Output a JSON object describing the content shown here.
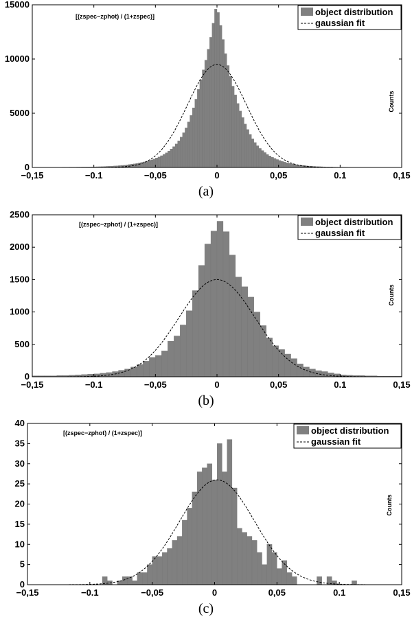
{
  "chart_data": [
    {
      "type": "bar",
      "id": "a",
      "caption": "(a)",
      "title": "[(zspec−zphot) / (1+zspec)]",
      "ylabel": "Counts",
      "xlim": [
        -0.15,
        0.15
      ],
      "ylim": [
        0,
        15000
      ],
      "xticks": [
        "−0,15",
        "−0.1",
        "−0,05",
        "0",
        "0,05",
        "0.1",
        "0,15"
      ],
      "yticks": [
        "0",
        "5000",
        "10000",
        "15000"
      ],
      "legend": {
        "position": "top-right",
        "entries": [
          "object distribution",
          "gaussian fit"
        ]
      },
      "bin_width": 0.002,
      "bins_x": [
        -0.147,
        -0.145,
        -0.143,
        -0.141,
        -0.139,
        -0.137,
        -0.135,
        -0.133,
        -0.131,
        -0.129,
        -0.127,
        -0.125,
        -0.123,
        -0.121,
        -0.119,
        -0.117,
        -0.115,
        -0.113,
        -0.111,
        -0.109,
        -0.107,
        -0.105,
        -0.103,
        -0.101,
        -0.099,
        -0.097,
        -0.095,
        -0.093,
        -0.091,
        -0.089,
        -0.087,
        -0.085,
        -0.083,
        -0.081,
        -0.079,
        -0.077,
        -0.075,
        -0.073,
        -0.071,
        -0.069,
        -0.067,
        -0.065,
        -0.063,
        -0.061,
        -0.059,
        -0.057,
        -0.055,
        -0.053,
        -0.051,
        -0.049,
        -0.047,
        -0.045,
        -0.043,
        -0.041,
        -0.039,
        -0.037,
        -0.035,
        -0.033,
        -0.031,
        -0.029,
        -0.027,
        -0.025,
        -0.023,
        -0.021,
        -0.019,
        -0.017,
        -0.015,
        -0.013,
        -0.011,
        -0.009,
        -0.007,
        -0.005,
        -0.003,
        -0.001,
        0.001,
        0.003,
        0.005,
        0.007,
        0.009,
        0.011,
        0.013,
        0.015,
        0.017,
        0.019,
        0.021,
        0.023,
        0.025,
        0.027,
        0.029,
        0.031,
        0.033,
        0.035,
        0.037,
        0.039,
        0.041,
        0.043,
        0.045,
        0.047,
        0.049,
        0.051,
        0.053,
        0.055,
        0.057,
        0.059,
        0.061,
        0.063,
        0.065,
        0.067,
        0.069,
        0.071,
        0.073,
        0.075,
        0.077,
        0.079,
        0.081,
        0.083,
        0.085,
        0.087,
        0.089,
        0.091,
        0.093,
        0.095,
        0.097,
        0.099,
        0.101,
        0.103,
        0.105,
        0.107,
        0.109,
        0.111,
        0.113,
        0.115,
        0.117,
        0.119,
        0.121,
        0.123,
        0.125,
        0.127,
        0.129,
        0.131,
        0.133,
        0.135,
        0.137,
        0.139,
        0.141,
        0.143,
        0.145,
        0.147
      ],
      "bins_y": [
        20,
        20,
        20,
        20,
        20,
        20,
        20,
        20,
        20,
        20,
        20,
        25,
        25,
        25,
        30,
        30,
        30,
        35,
        35,
        40,
        40,
        45,
        50,
        55,
        60,
        65,
        70,
        80,
        90,
        100,
        110,
        120,
        135,
        150,
        170,
        190,
        210,
        240,
        270,
        300,
        330,
        370,
        410,
        460,
        510,
        570,
        630,
        700,
        780,
        870,
        970,
        1080,
        1210,
        1350,
        1510,
        1700,
        1920,
        2170,
        2460,
        2800,
        3200,
        3650,
        4200,
        4800,
        5500,
        6300,
        7200,
        8100,
        9000,
        9900,
        10900,
        12000,
        13300,
        14600,
        14300,
        13100,
        11800,
        10500,
        9400,
        8400,
        7500,
        6700,
        5900,
        5200,
        4600,
        4000,
        3500,
        3050,
        2650,
        2300,
        2000,
        1750,
        1550,
        1370,
        1200,
        1060,
        940,
        830,
        730,
        640,
        560,
        490,
        430,
        380,
        330,
        290,
        250,
        220,
        190,
        165,
        145,
        125,
        110,
        95,
        85,
        75,
        65,
        57,
        50,
        45,
        40,
        35,
        32,
        30,
        28,
        26,
        24,
        22,
        20,
        20,
        20,
        20,
        20,
        20,
        20,
        20,
        20,
        20,
        20,
        20,
        20,
        20,
        20,
        20,
        20
      ],
      "gaussian": {
        "amplitude": 9500,
        "mean": 0.0,
        "sigma": 0.024
      }
    },
    {
      "type": "bar",
      "id": "b",
      "caption": "(b)",
      "title": "[(zspec−zphot) / (1+zspec)]",
      "ylabel": "Counts",
      "xlim": [
        -0.15,
        0.15
      ],
      "ylim": [
        0,
        2500
      ],
      "xticks": [
        "−0,15",
        "−0.1",
        "−0,05",
        "0",
        "0,05",
        "0.1",
        "0,15"
      ],
      "yticks": [
        "0",
        "500",
        "1000",
        "1500",
        "2000",
        "2500"
      ],
      "legend": {
        "position": "top-right",
        "entries": [
          "object distribution",
          "gaussian fit"
        ]
      },
      "bin_width": 0.005,
      "bins_x": [
        -0.1475,
        -0.1425,
        -0.1375,
        -0.1325,
        -0.1275,
        -0.1225,
        -0.1175,
        -0.1125,
        -0.1075,
        -0.1025,
        -0.0975,
        -0.0925,
        -0.0875,
        -0.0825,
        -0.0775,
        -0.0725,
        -0.0675,
        -0.0625,
        -0.0575,
        -0.0525,
        -0.0475,
        -0.0425,
        -0.0375,
        -0.0325,
        -0.0275,
        -0.0225,
        -0.0175,
        -0.0125,
        -0.0075,
        -0.0025,
        0.0025,
        0.0075,
        0.0125,
        0.0175,
        0.0225,
        0.0275,
        0.0325,
        0.0375,
        0.0425,
        0.0475,
        0.0525,
        0.0575,
        0.0625,
        0.0675,
        0.0725,
        0.0775,
        0.0825,
        0.0875,
        0.0925,
        0.0975,
        0.1025,
        0.1075,
        0.1125,
        0.1175,
        0.1225,
        0.1275,
        0.1325,
        0.1375,
        0.1425,
        0.1475
      ],
      "bins_y": [
        15,
        15,
        15,
        15,
        20,
        20,
        25,
        30,
        35,
        40,
        45,
        55,
        65,
        80,
        100,
        120,
        150,
        190,
        240,
        300,
        330,
        400,
        550,
        630,
        800,
        1020,
        1330,
        1720,
        2050,
        2250,
        2400,
        2240,
        1880,
        1540,
        1390,
        1230,
        1000,
        790,
        600,
        480,
        420,
        350,
        280,
        200,
        150,
        120,
        95,
        80,
        60,
        45,
        30,
        25,
        20,
        20,
        15,
        15,
        10,
        10,
        10,
        10
      ],
      "gaussian": {
        "amplitude": 1500,
        "mean": 0.0,
        "sigma": 0.031
      }
    },
    {
      "type": "bar",
      "id": "c",
      "caption": "(c)",
      "title": "[(zspec−zphot) / (1+zspec)]",
      "ylabel": "Counts",
      "xlim": [
        -0.15,
        0.15
      ],
      "ylim": [
        0,
        40
      ],
      "xticks": [
        "−0,15",
        "−0.1",
        "−0,05",
        "0",
        "0,05",
        "0.1",
        "0,15"
      ],
      "yticks": [
        "0",
        "5",
        "10",
        "15",
        "20",
        "25",
        "30",
        "35",
        "40"
      ],
      "legend": {
        "position": "top-right",
        "entries": [
          "object distribution",
          "gaussian fit"
        ]
      },
      "bin_width": 0.004,
      "bins_x": [
        -0.088,
        -0.084,
        -0.08,
        -0.076,
        -0.072,
        -0.068,
        -0.064,
        -0.06,
        -0.056,
        -0.052,
        -0.048,
        -0.044,
        -0.04,
        -0.036,
        -0.032,
        -0.028,
        -0.024,
        -0.02,
        -0.016,
        -0.012,
        -0.008,
        -0.004,
        0.0,
        0.004,
        0.008,
        0.012,
        0.016,
        0.02,
        0.024,
        0.028,
        0.032,
        0.036,
        0.04,
        0.044,
        0.048,
        0.052,
        0.056,
        0.06,
        0.064,
        0.068,
        0.072,
        0.076,
        0.08,
        0.084,
        0.088,
        0.092,
        0.096,
        0.1,
        0.104,
        0.108,
        0.112
      ],
      "bins_y": [
        2,
        1,
        0,
        1,
        2,
        2,
        1,
        3,
        3,
        5,
        7,
        7,
        8,
        9,
        11,
        12,
        16,
        19,
        23,
        28,
        29,
        30,
        26,
        35,
        28,
        36,
        24,
        14,
        13,
        12,
        11,
        8,
        5,
        10,
        8,
        4,
        6,
        3,
        2,
        0,
        0,
        0,
        0,
        2,
        0,
        2,
        1,
        0,
        0,
        0,
        1
      ],
      "gaussian": {
        "amplitude": 26,
        "mean": 0.002,
        "sigma": 0.03
      }
    }
  ]
}
